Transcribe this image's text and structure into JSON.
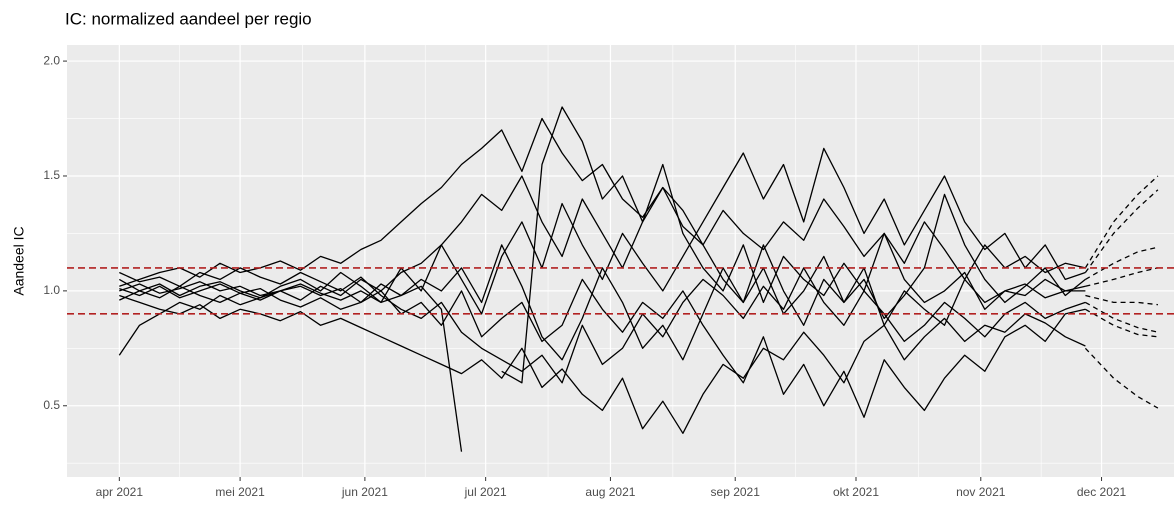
{
  "chart_data": {
    "type": "line",
    "title": "IC: normalized aandeel per regio",
    "y_label": "Aandeel IC",
    "xlim": [
      "2021-03-19",
      "2021-12-19"
    ],
    "xticks": [
      {
        "value": "2021-04-01",
        "label": "apr 2021"
      },
      {
        "value": "2021-05-01",
        "label": "mei 2021"
      },
      {
        "value": "2021-06-01",
        "label": "jun 2021"
      },
      {
        "value": "2021-07-01",
        "label": "jul 2021"
      },
      {
        "value": "2021-08-01",
        "label": "aug 2021"
      },
      {
        "value": "2021-09-01",
        "label": "sep 2021"
      },
      {
        "value": "2021-10-01",
        "label": "okt 2021"
      },
      {
        "value": "2021-11-01",
        "label": "nov 2021"
      },
      {
        "value": "2021-12-01",
        "label": "dec 2021"
      }
    ],
    "ylim": [
      0.19,
      2.07
    ],
    "yticks": [
      {
        "value": 0.5,
        "label": "0.5"
      },
      {
        "value": 1.0,
        "label": "1.0"
      },
      {
        "value": 1.5,
        "label": "1.5"
      },
      {
        "value": 2.0,
        "label": "2.0"
      }
    ],
    "grid": true,
    "hlines": [
      {
        "value": 1.1,
        "color": "#b22222"
      },
      {
        "value": 0.9,
        "color": "#b22222"
      }
    ],
    "x": [
      "2021-04-01",
      "2021-04-06",
      "2021-04-11",
      "2021-04-16",
      "2021-04-21",
      "2021-04-26",
      "2021-05-01",
      "2021-05-06",
      "2021-05-11",
      "2021-05-16",
      "2021-05-21",
      "2021-05-26",
      "2021-05-31",
      "2021-06-05",
      "2021-06-10",
      "2021-06-15",
      "2021-06-20",
      "2021-06-25",
      "2021-06-30",
      "2021-07-05",
      "2021-07-10",
      "2021-07-15",
      "2021-07-20",
      "2021-07-25",
      "2021-07-30",
      "2021-08-04",
      "2021-08-09",
      "2021-08-14",
      "2021-08-19",
      "2021-08-24",
      "2021-08-29",
      "2021-09-03",
      "2021-09-08",
      "2021-09-13",
      "2021-09-18",
      "2021-09-23",
      "2021-09-28",
      "2021-10-03",
      "2021-10-08",
      "2021-10-13",
      "2021-10-18",
      "2021-10-23",
      "2021-10-28",
      "2021-11-02",
      "2021-11-07",
      "2021-11-12",
      "2021-11-17",
      "2021-11-22",
      "2021-11-27"
    ],
    "series": [
      {
        "color": "#000000",
        "values": [
          1.02,
          1.05,
          1.08,
          1.1,
          1.06,
          1.12,
          1.08,
          1.1,
          1.13,
          1.09,
          1.15,
          1.12,
          1.18,
          1.22,
          1.3,
          1.38,
          1.45,
          1.55,
          1.62,
          1.7,
          1.52,
          1.75,
          1.6,
          1.48,
          1.55,
          1.4,
          1.32,
          1.45,
          1.28,
          1.2,
          1.35,
          1.25,
          1.18,
          1.3,
          1.22,
          1.4,
          1.28,
          1.15,
          1.25,
          1.12,
          1.3,
          1.18,
          1.05,
          1.2,
          1.1,
          1.15,
          1.08,
          1.12,
          1.1
        ]
      },
      {
        "color": "#000000",
        "values": [
          0.98,
          0.95,
          0.92,
          0.9,
          0.94,
          0.88,
          0.92,
          0.9,
          0.87,
          0.91,
          0.85,
          0.88,
          0.84,
          0.8,
          0.76,
          0.72,
          0.68,
          0.64,
          0.7,
          0.62,
          0.75,
          0.58,
          0.66,
          0.55,
          0.48,
          0.62,
          0.4,
          0.52,
          0.38,
          0.55,
          0.68,
          0.62,
          0.75,
          0.7,
          0.82,
          0.72,
          0.6,
          0.78,
          0.85,
          0.7,
          0.8,
          0.88,
          0.78,
          0.85,
          0.82,
          0.9,
          0.86,
          0.8,
          0.76
        ]
      },
      {
        "color": "#000000",
        "values": [
          1.05,
          1.0,
          1.03,
          0.98,
          1.02,
          1.04,
          1.0,
          0.97,
          1.02,
          1.05,
          1.0,
          1.08,
          1.02,
          0.95,
          1.1,
          1.0,
          1.2,
          1.05,
          0.9,
          1.15,
          1.3,
          1.1,
          1.38,
          1.2,
          1.05,
          1.25,
          1.12,
          1.0,
          1.15,
          1.3,
          1.45,
          1.6,
          1.4,
          1.55,
          1.3,
          1.62,
          1.45,
          1.25,
          1.4,
          1.2,
          1.35,
          1.5,
          1.3,
          1.18,
          1.25,
          1.1,
          1.2,
          1.05,
          1.08
        ]
      },
      {
        "color": "#000000",
        "values": [
          0.96,
          1.0,
          0.97,
          1.02,
          0.98,
          0.95,
          0.99,
          1.01,
          0.96,
          0.93,
          0.97,
          0.92,
          0.95,
          1.0,
          0.9,
          0.95,
          0.85,
          1.0,
          0.8,
          0.88,
          0.95,
          0.78,
          0.85,
          1.05,
          0.92,
          0.82,
          0.95,
          0.88,
          1.0,
          0.85,
          0.72,
          0.6,
          0.8,
          0.55,
          0.68,
          0.5,
          0.65,
          0.45,
          0.7,
          0.58,
          0.48,
          0.62,
          0.72,
          0.65,
          0.8,
          0.85,
          0.78,
          0.9,
          0.92
        ]
      },
      {
        "color": "#000000",
        "values": [
          0.72,
          0.85,
          0.9,
          0.95,
          0.92,
          0.98,
          0.94,
          0.97,
          1.0,
          0.96,
          1.02,
          0.98,
          1.05,
          1.0,
          1.08,
          1.12,
          1.2,
          1.3,
          1.42,
          1.35,
          1.5,
          1.3,
          1.15,
          1.4,
          1.25,
          1.1,
          1.3,
          1.45,
          1.35,
          1.2,
          1.05,
          0.95,
          1.1,
          0.9,
          1.0,
          1.15,
          0.95,
          1.05,
          0.88,
          0.98,
          1.1,
          1.42,
          1.2,
          1.05,
          0.95,
          1.02,
          1.1,
          0.98,
          1.05
        ]
      },
      {
        "color": "#000000",
        "values": [
          1.08,
          1.04,
          1.06,
          1.02,
          1.08,
          1.05,
          1.1,
          1.06,
          1.03,
          1.08,
          1.04,
          1.0,
          1.06,
          0.98,
          0.92,
          0.88,
          0.95,
          0.82,
          0.75,
          0.7,
          0.65,
          0.72,
          0.6,
          0.85,
          0.68,
          0.75,
          0.9,
          0.8,
          0.95,
          1.05,
          0.98,
          0.88,
          1.02,
          0.92,
          1.1,
          0.95,
          0.85,
          1.0,
          0.9,
          0.78,
          0.85,
          0.95,
          0.88,
          0.8,
          0.9,
          0.95,
          0.88,
          0.92,
          0.95
        ]
      },
      {
        "color": "#000000",
        "values": [
          1.0,
          1.03,
          0.99,
          1.01,
          1.04,
          1.0,
          1.02,
          0.98,
          1.0,
          1.03,
          0.99,
          0.96,
          1.0,
          0.95,
          0.98,
          1.02,
          0.92,
          0.3,
          null,
          0.65,
          0.6,
          1.55,
          1.8,
          1.65,
          1.4,
          1.5,
          1.3,
          1.55,
          1.25,
          1.1,
          1.0,
          1.2,
          0.95,
          1.15,
          1.05,
          0.98,
          1.12,
          1.0,
          1.25,
          1.05,
          0.95,
          1.0,
          1.08,
          0.92,
          1.0,
          1.03,
          0.97,
          1.0,
          1.02
        ]
      },
      {
        "color": "#000000",
        "values": [
          1.01,
          0.98,
          1.02,
          0.97,
          1.0,
          1.03,
          0.99,
          0.96,
          1.0,
          1.02,
          0.98,
          1.01,
          0.95,
          1.03,
          0.98,
          1.05,
          1.0,
          1.1,
          0.95,
          1.2,
          1.02,
          0.8,
          0.7,
          0.88,
          1.1,
          0.95,
          0.75,
          0.85,
          0.7,
          0.9,
          1.1,
          0.95,
          1.2,
          1.0,
          0.85,
          1.05,
          0.95,
          1.1,
          0.85,
          1.0,
          0.92,
          0.85,
          1.05,
          0.95,
          1.0,
          0.98,
          1.05,
          1.0,
          1.0
        ]
      }
    ],
    "forecast_x": [
      "2021-11-27",
      "2021-12-04",
      "2021-12-10",
      "2021-12-15"
    ],
    "forecast_series": [
      {
        "color": "#000000",
        "dashed": true,
        "values": [
          1.1,
          1.3,
          1.42,
          1.5
        ]
      },
      {
        "color": "#000000",
        "dashed": true,
        "values": [
          1.08,
          1.25,
          1.36,
          1.44
        ]
      },
      {
        "color": "#000000",
        "dashed": true,
        "values": [
          1.05,
          1.12,
          1.17,
          1.19
        ]
      },
      {
        "color": "#000000",
        "dashed": true,
        "values": [
          1.02,
          1.05,
          1.08,
          1.1
        ]
      },
      {
        "color": "#000000",
        "dashed": true,
        "values": [
          0.98,
          0.95,
          0.95,
          0.94
        ]
      },
      {
        "color": "#000000",
        "dashed": true,
        "values": [
          0.95,
          0.88,
          0.84,
          0.82
        ]
      },
      {
        "color": "#000000",
        "dashed": true,
        "values": [
          0.92,
          0.85,
          0.81,
          0.8
        ]
      },
      {
        "color": "#000000",
        "dashed": true,
        "values": [
          0.75,
          0.62,
          0.54,
          0.49
        ]
      }
    ]
  }
}
